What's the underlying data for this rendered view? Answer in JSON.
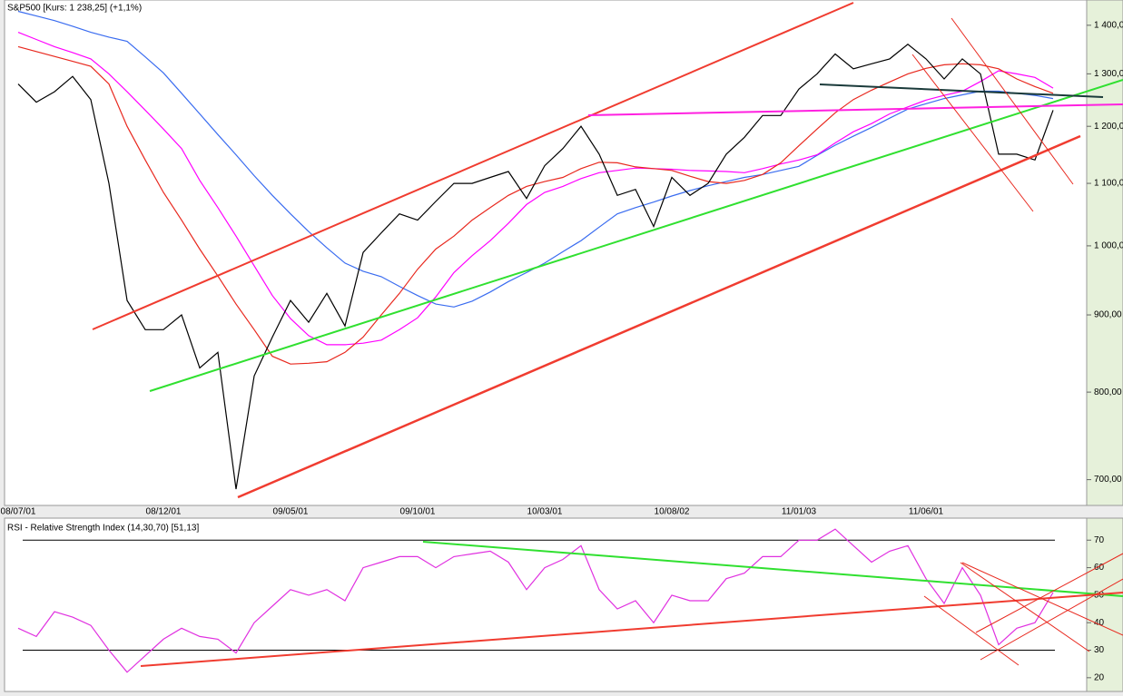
{
  "chart_data": [
    {
      "type": "line",
      "title": "S&P500 [Kurs: 1 238,25] (+1,1%)",
      "log_scale": true,
      "categories": [
        "08/07/01",
        null,
        null,
        null,
        null,
        null,
        null,
        null,
        "08/12/01",
        null,
        null,
        null,
        null,
        null,
        null,
        "09/05/01",
        null,
        null,
        null,
        null,
        null,
        null,
        "09/10/01",
        null,
        null,
        null,
        null,
        null,
        null,
        "10/03/01",
        null,
        null,
        null,
        null,
        null,
        null,
        "10/08/02",
        null,
        null,
        null,
        null,
        null,
        null,
        "11/01/03",
        null,
        null,
        null,
        null,
        null,
        null,
        "11/06/01",
        null,
        null,
        null,
        null,
        null,
        null,
        null
      ],
      "series": [
        {
          "color": "#3a6cf0",
          "values": [
            1430,
            1420,
            1410,
            1398,
            1385,
            1375,
            1366,
            1334,
            1302,
            1262,
            1223,
            1185,
            1149,
            1113,
            1080,
            1050,
            1022,
            997,
            974,
            962,
            954,
            940,
            927,
            915,
            911,
            919,
            932,
            947,
            960,
            974,
            991,
            1008,
            1029,
            1050,
            1060,
            1069,
            1079,
            1088,
            1096,
            1103,
            1110,
            1115,
            1122,
            1129,
            1148,
            1166,
            1182,
            1198,
            1215,
            1232,
            1242,
            1252,
            1259,
            1266,
            1266,
            1262,
            1258,
            1252
          ]
        },
        {
          "color": "#ff00ff",
          "values": [
            1385,
            1370,
            1355,
            1343,
            1330,
            1300,
            1265,
            1230,
            1195,
            1160,
            1105,
            1060,
            1015,
            970,
            927,
            895,
            872,
            860,
            860,
            862,
            866,
            880,
            896,
            925,
            960,
            985,
            1008,
            1035,
            1065,
            1085,
            1095,
            1108,
            1118,
            1122,
            1126,
            1125,
            1124,
            1122,
            1121,
            1120,
            1118,
            1125,
            1133,
            1140,
            1149,
            1170,
            1190,
            1205,
            1223,
            1236,
            1249,
            1258,
            1266,
            1285,
            1306,
            1300,
            1293,
            1272
          ]
        },
        {
          "color": "#e8281e",
          "values": [
            1355,
            1345,
            1335,
            1325,
            1315,
            1280,
            1200,
            1140,
            1085,
            1040,
            995,
            955,
            915,
            880,
            845,
            835,
            836,
            838,
            850,
            870,
            900,
            930,
            965,
            995,
            1015,
            1040,
            1060,
            1080,
            1095,
            1103,
            1110,
            1125,
            1136,
            1135,
            1128,
            1125,
            1122,
            1112,
            1103,
            1100,
            1105,
            1115,
            1135,
            1165,
            1195,
            1225,
            1250,
            1268,
            1284,
            1300,
            1311,
            1318,
            1320,
            1318,
            1310,
            1290,
            1275,
            1262
          ]
        },
        {
          "color": "#000000",
          "values": [
            1280,
            1245,
            1265,
            1295,
            1250,
            1100,
            920,
            880,
            880,
            900,
            830,
            850,
            690,
            820,
            870,
            920,
            890,
            930,
            885,
            990,
            1020,
            1050,
            1040,
            1070,
            1100,
            1100,
            1110,
            1120,
            1075,
            1130,
            1160,
            1200,
            1150,
            1080,
            1090,
            1030,
            1110,
            1080,
            1100,
            1150,
            1180,
            1220,
            1220,
            1270,
            1300,
            1340,
            1310,
            1320,
            1330,
            1360,
            1330,
            1290,
            1330,
            1300,
            1150,
            1150,
            1140,
            1230
          ]
        }
      ],
      "ylim": [
        673,
        1455
      ],
      "yticks": [
        {
          "value": 700,
          "label": "700,00"
        },
        {
          "value": 800,
          "label": "800,00"
        },
        {
          "value": 900,
          "label": "900,00"
        },
        {
          "value": 1000,
          "label": "1 000,00"
        },
        {
          "value": 1100,
          "label": "1 100,00"
        },
        {
          "value": 1200,
          "label": "1 200,00"
        },
        {
          "value": 1300,
          "label": "1 300,00"
        },
        {
          "value": 1400,
          "label": "1 400,00"
        }
      ]
    },
    {
      "type": "line",
      "title": "RSI - Relative Strength Index (14,30,70) [51,13]",
      "series": [
        {
          "color": "#e030e0",
          "values": [
            38,
            35,
            44,
            42,
            39,
            30,
            22,
            28,
            34,
            38,
            35,
            34,
            29,
            40,
            46,
            52,
            50,
            52,
            48,
            60,
            62,
            64,
            64,
            60,
            64,
            65,
            66,
            62,
            52,
            60,
            63,
            68,
            52,
            45,
            48,
            40,
            50,
            48,
            48,
            56,
            58,
            64,
            64,
            70,
            70,
            74,
            68,
            62,
            66,
            68,
            56,
            47,
            60,
            50,
            32,
            38,
            40,
            51
          ]
        }
      ],
      "levels": [
        30,
        70
      ],
      "ylim": [
        15,
        78
      ],
      "yticks": [
        20,
        30,
        40,
        50,
        60,
        70
      ]
    }
  ]
}
